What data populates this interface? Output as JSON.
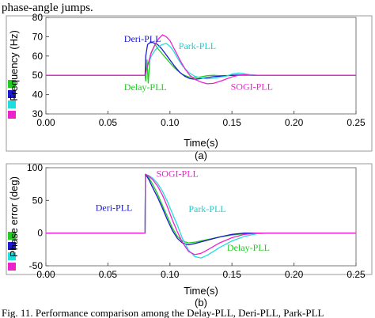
{
  "header_fragment": "phase-angle jumps.",
  "footer_fragment": "Fig. 11. Performance comparison among the Delay-PLL, Deri-PLL, Park-PLL",
  "legend_colors": [
    "#22cc22",
    "#1a1acc",
    "#22dddd",
    "#ee22cc"
  ],
  "chart_data": [
    {
      "type": "line",
      "caption": "(a)",
      "xlabel": "Time(s)",
      "ylabel": "Frequency (Hz)",
      "xlim": [
        0,
        0.25
      ],
      "ylim": [
        30,
        80
      ],
      "xticks": [
        "0.00",
        "0.05",
        "0.10",
        "0.15",
        "0.20",
        "0.25"
      ],
      "yticks": [
        "30",
        "40",
        "50",
        "60",
        "70",
        "80"
      ],
      "grid": false,
      "annotations": [
        {
          "text": "Deri-PLL",
          "color": "#1a1acc",
          "x": 0.063,
          "y": 67.2
        },
        {
          "text": "Park-PLL",
          "color": "#22cccc",
          "x": 0.107,
          "y": 63.6
        },
        {
          "text": "Delay-PLL",
          "color": "#22cc22",
          "x": 0.063,
          "y": 42.2
        },
        {
          "text": "SOGI-PLL",
          "color": "#ee22cc",
          "x": 0.149,
          "y": 42.4
        }
      ],
      "series": [
        {
          "name": "Delay-PLL",
          "color": "#22cc22",
          "x": [
            0,
            0.08,
            0.0805,
            0.0815,
            0.0825,
            0.084,
            0.086,
            0.088,
            0.09,
            0.094,
            0.098,
            0.102,
            0.106,
            0.11,
            0.115,
            0.12,
            0.125,
            0.13,
            0.135,
            0.14,
            0.15,
            0.16,
            0.17,
            0.18,
            0.25
          ],
          "y": [
            50,
            50,
            47,
            58,
            46,
            60,
            63,
            66,
            64,
            61,
            58,
            55,
            52.5,
            50.5,
            49.2,
            48.8,
            49.2,
            49.8,
            50,
            49.8,
            49.9,
            50,
            50,
            50,
            50
          ]
        },
        {
          "name": "Deri-PLL",
          "color": "#1a1acc",
          "x": [
            0,
            0.08,
            0.0805,
            0.082,
            0.084,
            0.086,
            0.088,
            0.09,
            0.093,
            0.096,
            0.1,
            0.104,
            0.108,
            0.112,
            0.116,
            0.12,
            0.125,
            0.13,
            0.135,
            0.14,
            0.15,
            0.16,
            0.17,
            0.18,
            0.25
          ],
          "y": [
            50,
            50,
            60,
            66,
            67,
            67,
            66.5,
            66,
            64,
            61.5,
            58,
            54.5,
            51.5,
            49.5,
            48.3,
            48,
            48.3,
            48.8,
            49.3,
            49.5,
            50,
            50.3,
            50,
            50,
            50
          ]
        },
        {
          "name": "Park-PLL",
          "color": "#22dddd",
          "x": [
            0,
            0.08,
            0.082,
            0.085,
            0.088,
            0.091,
            0.094,
            0.097,
            0.1,
            0.103,
            0.106,
            0.11,
            0.115,
            0.12,
            0.125,
            0.13,
            0.135,
            0.14,
            0.145,
            0.15,
            0.155,
            0.16,
            0.165,
            0.17,
            0.175,
            0.18,
            0.25
          ],
          "y": [
            50,
            50,
            55,
            60,
            63,
            65,
            66,
            66.5,
            65,
            62.5,
            59,
            55,
            51.5,
            49.5,
            48.6,
            48.2,
            48.5,
            49,
            49.5,
            50.6,
            51.2,
            50.8,
            50.3,
            50,
            49.9,
            50,
            50
          ]
        },
        {
          "name": "SOGI-PLL",
          "color": "#ee22cc",
          "x": [
            0,
            0.08,
            0.082,
            0.085,
            0.088,
            0.091,
            0.094,
            0.097,
            0.1,
            0.104,
            0.108,
            0.112,
            0.116,
            0.12,
            0.125,
            0.13,
            0.135,
            0.14,
            0.145,
            0.15,
            0.155,
            0.16,
            0.165,
            0.17,
            0.25
          ],
          "y": [
            50,
            50,
            55,
            62,
            66,
            69,
            71,
            70,
            68,
            63,
            58,
            53.5,
            50,
            48,
            46.5,
            45.6,
            45.8,
            46.8,
            48,
            49.2,
            50,
            50.3,
            50.1,
            50,
            50
          ]
        }
      ]
    },
    {
      "type": "line",
      "caption": "(b)",
      "xlabel": "Time(s)",
      "ylabel": "Phase error (deg)",
      "xlim": [
        0,
        0.25
      ],
      "ylim": [
        -50,
        100
      ],
      "xticks": [
        "0.00",
        "0.05",
        "0.10",
        "0.15",
        "0.20",
        "0.25"
      ],
      "yticks": [
        "-50",
        "0",
        "50",
        "100"
      ],
      "grid": false,
      "annotations": [
        {
          "text": "SOGI-PLL",
          "color": "#ee22cc",
          "x": 0.089,
          "y": 86
        },
        {
          "text": "Deri-PLL",
          "color": "#1a1acc",
          "x": 0.04,
          "y": 34
        },
        {
          "text": "Park-PLL",
          "color": "#22cccc",
          "x": 0.115,
          "y": 32
        },
        {
          "text": "Delay-PLL",
          "color": "#22cc22",
          "x": 0.146,
          "y": -27
        }
      ],
      "series": [
        {
          "name": "Delay-PLL",
          "color": "#22cc22",
          "x": [
            0,
            0.08,
            0.0802,
            0.083,
            0.086,
            0.09,
            0.094,
            0.098,
            0.102,
            0.106,
            0.11,
            0.115,
            0.12,
            0.13,
            0.14,
            0.15,
            0.16,
            0.17,
            0.18,
            0.25
          ],
          "y": [
            0,
            0,
            90,
            85,
            75,
            60,
            42,
            25,
            8,
            -5,
            -12,
            -15,
            -14,
            -10,
            -6,
            -3,
            -1,
            0,
            0,
            0
          ]
        },
        {
          "name": "Deri-PLL",
          "color": "#1a1acc",
          "x": [
            0,
            0.08,
            0.0802,
            0.083,
            0.086,
            0.09,
            0.094,
            0.098,
            0.102,
            0.106,
            0.11,
            0.115,
            0.12,
            0.13,
            0.14,
            0.15,
            0.16,
            0.17,
            0.18,
            0.25
          ],
          "y": [
            0,
            0,
            90,
            82,
            70,
            55,
            38,
            20,
            4,
            -8,
            -15,
            -18,
            -16,
            -11,
            -6,
            -2,
            0,
            0,
            0,
            0
          ]
        },
        {
          "name": "Park-PLL",
          "color": "#22dddd",
          "x": [
            0,
            0.08,
            0.0802,
            0.083,
            0.086,
            0.09,
            0.094,
            0.098,
            0.102,
            0.106,
            0.11,
            0.115,
            0.12,
            0.125,
            0.13,
            0.14,
            0.15,
            0.16,
            0.17,
            0.18,
            0.19,
            0.25
          ],
          "y": [
            0,
            0,
            90,
            88,
            84,
            76,
            64,
            48,
            30,
            12,
            -8,
            -26,
            -36,
            -38,
            -34,
            -22,
            -12,
            -5,
            -1,
            0,
            0,
            0
          ]
        },
        {
          "name": "SOGI-PLL",
          "color": "#ee22cc",
          "x": [
            0,
            0.08,
            0.0802,
            0.083,
            0.086,
            0.09,
            0.094,
            0.098,
            0.102,
            0.106,
            0.11,
            0.115,
            0.12,
            0.125,
            0.13,
            0.14,
            0.15,
            0.16,
            0.17,
            0.18,
            0.25
          ],
          "y": [
            0,
            0,
            90,
            87,
            82,
            72,
            58,
            40,
            20,
            2,
            -14,
            -28,
            -33,
            -31,
            -26,
            -15,
            -7,
            -2,
            0,
            0,
            0
          ]
        }
      ]
    }
  ]
}
